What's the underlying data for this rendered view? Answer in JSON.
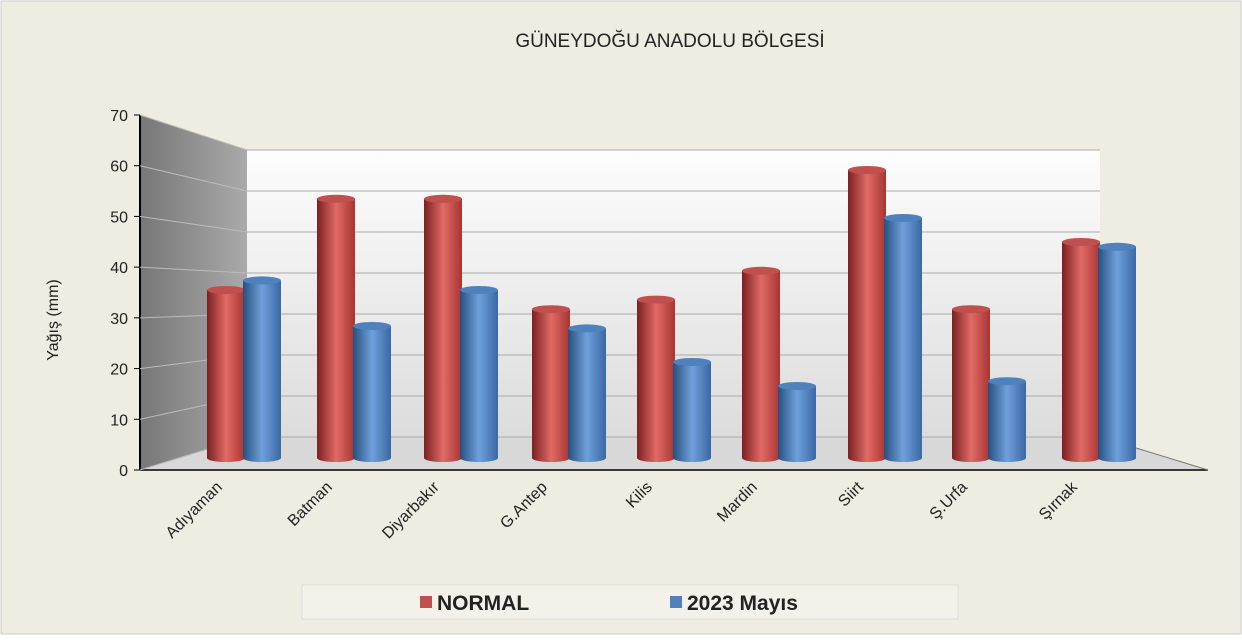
{
  "chart_data": {
    "type": "bar3d",
    "title": "GÜNEYDOĞU ANADOLU BÖLGESİ",
    "y_label": "Yağış (mm)",
    "categories": [
      "Adıyaman",
      "Batman",
      "Diyarbakır",
      "G.Antep",
      "Kilis",
      "Mardin",
      "Siirt",
      "Ş.Urfa",
      "Şırnak"
    ],
    "series": [
      {
        "name": "NORMAL",
        "color": "#c0504d",
        "values": [
          35,
          54,
          54,
          31,
          33,
          39,
          60,
          31,
          45
        ]
      },
      {
        "name": "2023  Mayıs",
        "color": "#4f81bd",
        "values": [
          37,
          27.5,
          35,
          27,
          20,
          15,
          50,
          16,
          44
        ]
      }
    ],
    "ylim": [
      0,
      70
    ],
    "yticks": [
      0,
      10,
      20,
      30,
      40,
      50,
      60,
      70
    ],
    "grid": true,
    "legend": "bottom"
  }
}
